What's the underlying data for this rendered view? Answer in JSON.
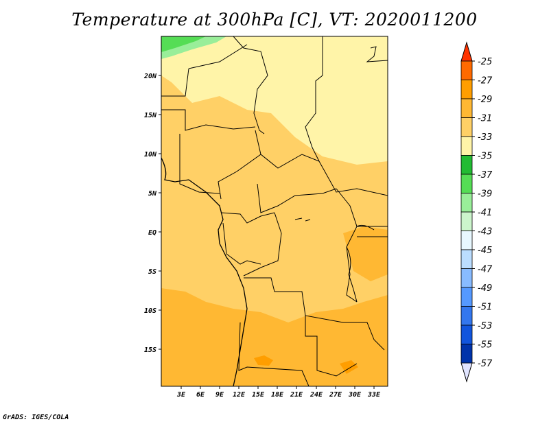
{
  "title": "Temperature at 300hPa [C], VT: 2020011200",
  "credit": "GrADS: IGES/COLA",
  "map": {
    "lat_labels": [
      "20N",
      "15N",
      "10N",
      "5N",
      "EQ",
      "5S",
      "10S",
      "15S"
    ],
    "lon_labels": [
      "3E",
      "6E",
      "9E",
      "12E",
      "15E",
      "18E",
      "21E",
      "24E",
      "27E",
      "30E",
      "33E"
    ]
  },
  "colorbar": {
    "labels": [
      "-25",
      "-27",
      "-29",
      "-31",
      "-33",
      "-35",
      "-37",
      "-39",
      "-41",
      "-43",
      "-45",
      "-47",
      "-49",
      "-51",
      "-53",
      "-55",
      "-57"
    ],
    "colors": [
      "#ff6a00",
      "#ff9e00",
      "#ffb833",
      "#ffd066",
      "#fff4a8",
      "#22bb33",
      "#55dd55",
      "#99ee99",
      "#ccf5cc",
      "#e8f8ff",
      "#bbddff",
      "#88bbff",
      "#5599ff",
      "#3377ee",
      "#1155dd",
      "#0033aa",
      "#000077"
    ],
    "top_color": "#ff3300",
    "bottom_color": "#e0e4ff"
  }
}
